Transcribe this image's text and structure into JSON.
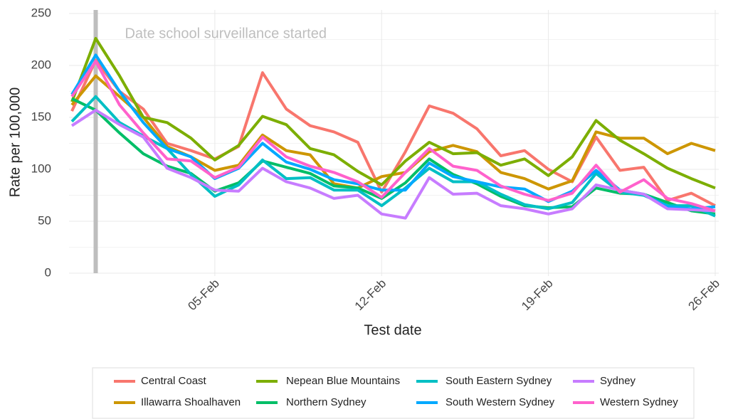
{
  "chart_data": {
    "type": "line",
    "x_label": "Test date",
    "y_label": "Rate per 100,000",
    "categories": [
      null,
      null,
      null,
      null,
      null,
      null,
      "05-Feb",
      null,
      null,
      null,
      null,
      null,
      null,
      "12-Feb",
      null,
      null,
      null,
      null,
      null,
      null,
      "19-Feb",
      null,
      null,
      null,
      null,
      null,
      null,
      "26-Feb"
    ],
    "ylim": [
      0,
      250
    ],
    "yticks": [
      0,
      50,
      100,
      150,
      200,
      250
    ],
    "grid": true,
    "legend": "bottom",
    "annotation": {
      "text": "Date school surveillance started",
      "category_index": 1,
      "color": "#bebebe"
    },
    "series": [
      {
        "name": "Central Coast",
        "color": "#F8766D",
        "values": [
          156,
          205,
          175,
          158,
          125,
          118,
          110,
          122,
          193,
          158,
          142,
          136,
          126,
          78,
          117,
          161,
          154,
          139,
          113,
          118,
          100,
          88,
          131,
          99,
          102,
          70,
          77,
          65
        ]
      },
      {
        "name": "Illawarra Shoalhaven",
        "color": "#CD9600",
        "values": [
          162,
          190,
          170,
          150,
          122,
          112,
          99,
          104,
          133,
          118,
          114,
          86,
          82,
          93,
          97,
          117,
          123,
          117,
          97,
          91,
          81,
          89,
          136,
          130,
          130,
          115,
          125,
          118
        ]
      },
      {
        "name": "Nepean Blue Mountains",
        "color": "#7CAE00",
        "values": [
          165,
          226,
          190,
          150,
          145,
          130,
          109,
          123,
          151,
          143,
          120,
          114,
          98,
          85,
          108,
          126,
          115,
          116,
          104,
          110,
          94,
          112,
          147,
          128,
          115,
          101,
          91,
          82
        ]
      },
      {
        "name": "Northern Sydney",
        "color": "#00BE67",
        "values": [
          168,
          157,
          135,
          115,
          103,
          96,
          79,
          87,
          108,
          102,
          96,
          84,
          82,
          72,
          87,
          110,
          95,
          86,
          74,
          65,
          63,
          64,
          82,
          77,
          76,
          68,
          60,
          57
        ]
      },
      {
        "name": "South Eastern Sydney",
        "color": "#00BFC4",
        "values": [
          146,
          170,
          145,
          132,
          120,
          95,
          74,
          85,
          109,
          91,
          92,
          80,
          80,
          65,
          82,
          101,
          88,
          88,
          76,
          66,
          62,
          68,
          96,
          78,
          75,
          65,
          65,
          55
        ]
      },
      {
        "name": "South Western Sydney",
        "color": "#00A9FF",
        "values": [
          172,
          210,
          175,
          145,
          120,
          112,
          91,
          101,
          125,
          107,
          100,
          90,
          86,
          80,
          80,
          106,
          93,
          88,
          83,
          81,
          69,
          79,
          99,
          80,
          76,
          64,
          62,
          64
        ]
      },
      {
        "name": "Sydney",
        "color": "#C77CFF",
        "values": [
          142,
          157,
          143,
          131,
          101,
          92,
          80,
          79,
          101,
          88,
          82,
          72,
          75,
          57,
          53,
          92,
          76,
          77,
          65,
          62,
          57,
          62,
          85,
          80,
          76,
          62,
          61,
          60
        ]
      },
      {
        "name": "Western Sydney",
        "color": "#FF61CC",
        "values": [
          170,
          204,
          162,
          135,
          110,
          108,
          92,
          102,
          131,
          112,
          103,
          97,
          88,
          73,
          97,
          120,
          103,
          99,
          84,
          76,
          70,
          77,
          104,
          78,
          90,
          72,
          67,
          60
        ]
      }
    ]
  }
}
